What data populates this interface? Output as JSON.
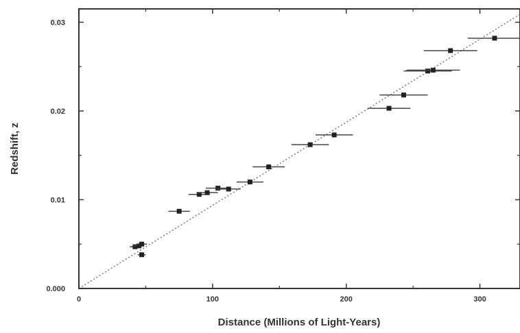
{
  "chart_data": {
    "type": "scatter",
    "title": "",
    "xlabel": "Distance (Millions of Light-Years)",
    "ylabel": "Redshift, z",
    "xlim": [
      0,
      330
    ],
    "ylim": [
      0.0,
      0.0315
    ],
    "x_ticks": [
      {
        "value": 0,
        "label": "0"
      },
      {
        "value": 100,
        "label": "100"
      },
      {
        "value": 200,
        "label": "200"
      },
      {
        "value": 300,
        "label": "300"
      }
    ],
    "y_ticks": [
      {
        "value": 0.0,
        "label": "0.000"
      },
      {
        "value": 0.01,
        "label": "0.01"
      },
      {
        "value": 0.02,
        "label": "0.02"
      },
      {
        "value": 0.03,
        "label": "0.03"
      }
    ],
    "grid": false,
    "series": [
      {
        "points": [
          {
            "x": 42,
            "y": 0.0047,
            "xerr": 4
          },
          {
            "x": 45,
            "y": 0.0048,
            "xerr": 4
          },
          {
            "x": 47,
            "y": 0.005,
            "xerr": 4
          },
          {
            "x": 47,
            "y": 0.0038,
            "xerr": 3
          },
          {
            "x": 75,
            "y": 0.0087,
            "xerr": 8
          },
          {
            "x": 90,
            "y": 0.0106,
            "xerr": 8
          },
          {
            "x": 96,
            "y": 0.0108,
            "xerr": 8
          },
          {
            "x": 104,
            "y": 0.0113,
            "xerr": 9
          },
          {
            "x": 112,
            "y": 0.0112,
            "xerr": 9
          },
          {
            "x": 128,
            "y": 0.012,
            "xerr": 10
          },
          {
            "x": 142,
            "y": 0.0137,
            "xerr": 12
          },
          {
            "x": 173,
            "y": 0.0162,
            "xerr": 14
          },
          {
            "x": 191,
            "y": 0.0173,
            "xerr": 14
          },
          {
            "x": 232,
            "y": 0.0203,
            "xerr": 16
          },
          {
            "x": 243,
            "y": 0.0218,
            "xerr": 18
          },
          {
            "x": 261,
            "y": 0.0245,
            "xerr": 18
          },
          {
            "x": 265,
            "y": 0.0246,
            "xerr": 20
          },
          {
            "x": 278,
            "y": 0.0268,
            "xerr": 20
          },
          {
            "x": 311,
            "y": 0.0282,
            "xerr": 20
          }
        ]
      }
    ],
    "fit_line": {
      "x": [
        0,
        330
      ],
      "y": [
        0.0,
        0.0309
      ],
      "style": "dotted"
    }
  }
}
